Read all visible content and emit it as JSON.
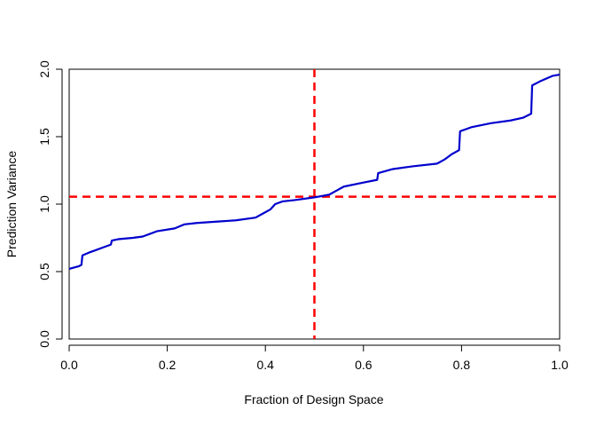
{
  "chart_data": {
    "type": "line",
    "title": "",
    "xlabel": "Fraction of Design Space",
    "ylabel": "Prediction Variance",
    "xlim": [
      0,
      1
    ],
    "ylim": [
      0,
      2
    ],
    "grid": false,
    "x_ticks": [
      0,
      0.2,
      0.4,
      0.6,
      0.8,
      1
    ],
    "x_tick_labels": [
      "0.0",
      "0.2",
      "0.4",
      "0.6",
      "0.8",
      "1.0"
    ],
    "y_ticks": [
      0,
      0.5,
      1,
      1.5,
      2
    ],
    "y_tick_labels": [
      "0.0",
      "0.5",
      "1.0",
      "1.5",
      "2.0"
    ],
    "series": [
      {
        "color": "#0000CD",
        "points": [
          [
            0.0,
            0.52
          ],
          [
            0.01,
            0.53
          ],
          [
            0.02,
            0.54
          ],
          [
            0.025,
            0.55
          ],
          [
            0.027,
            0.62
          ],
          [
            0.04,
            0.64
          ],
          [
            0.055,
            0.66
          ],
          [
            0.07,
            0.68
          ],
          [
            0.085,
            0.7
          ],
          [
            0.087,
            0.73
          ],
          [
            0.1,
            0.74
          ],
          [
            0.13,
            0.75
          ],
          [
            0.15,
            0.76
          ],
          [
            0.165,
            0.78
          ],
          [
            0.18,
            0.8
          ],
          [
            0.215,
            0.82
          ],
          [
            0.235,
            0.85
          ],
          [
            0.26,
            0.86
          ],
          [
            0.3,
            0.87
          ],
          [
            0.34,
            0.88
          ],
          [
            0.38,
            0.9
          ],
          [
            0.395,
            0.93
          ],
          [
            0.41,
            0.96
          ],
          [
            0.42,
            1.0
          ],
          [
            0.435,
            1.02
          ],
          [
            0.46,
            1.03
          ],
          [
            0.5,
            1.05
          ],
          [
            0.53,
            1.07
          ],
          [
            0.545,
            1.1
          ],
          [
            0.56,
            1.13
          ],
          [
            0.6,
            1.16
          ],
          [
            0.628,
            1.18
          ],
          [
            0.63,
            1.23
          ],
          [
            0.66,
            1.26
          ],
          [
            0.7,
            1.28
          ],
          [
            0.75,
            1.3
          ],
          [
            0.765,
            1.33
          ],
          [
            0.78,
            1.37
          ],
          [
            0.795,
            1.4
          ],
          [
            0.797,
            1.54
          ],
          [
            0.82,
            1.57
          ],
          [
            0.86,
            1.6
          ],
          [
            0.9,
            1.62
          ],
          [
            0.925,
            1.64
          ],
          [
            0.942,
            1.67
          ],
          [
            0.944,
            1.88
          ],
          [
            0.96,
            1.91
          ],
          [
            0.985,
            1.95
          ],
          [
            1.0,
            1.96
          ]
        ]
      }
    ],
    "reference_lines": {
      "color": "#FF0000",
      "vertical_x": 0.5,
      "horizontal_y": 1.055
    }
  }
}
